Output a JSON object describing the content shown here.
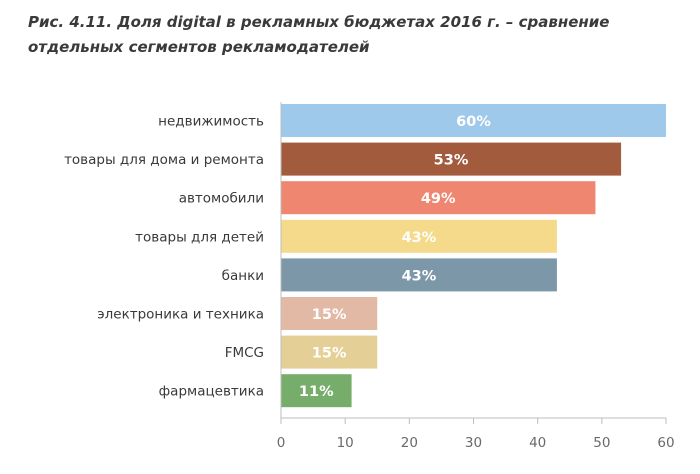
{
  "caption": "Рис. 4.11.  Доля digital в рекламных бюджетах 2016 г. – сравнение отдельных сегментов рекламодателей",
  "chart_data": {
    "type": "bar",
    "orientation": "horizontal",
    "title": "Рис. 4.11.  Доля digital в рекламных бюджетах 2016 г. – сравнение отдельных сегментов рекламодателей",
    "xlabel": "",
    "ylabel": "",
    "xlim": [
      0,
      60
    ],
    "xticks": [
      0,
      10,
      20,
      30,
      40,
      50,
      60
    ],
    "grid": false,
    "legend": "none",
    "categories": [
      "недвижимость",
      "товары для дома и ремонта",
      "автомобили",
      "товары для детей",
      "банки",
      "электроника и техника",
      "FMCG",
      "фармацевтика"
    ],
    "values": [
      60,
      53,
      49,
      43,
      43,
      15,
      15,
      11
    ],
    "value_labels": [
      "60%",
      "53%",
      "49%",
      "43%",
      "43%",
      "15%",
      "15%",
      "11%"
    ],
    "colors": [
      "#9fc9ea",
      "#a25b3d",
      "#ef8670",
      "#f5da8c",
      "#7c97a8",
      "#e1b9a4",
      "#e4d096",
      "#77ad6b"
    ],
    "axis_color": "#bdbdbd"
  }
}
